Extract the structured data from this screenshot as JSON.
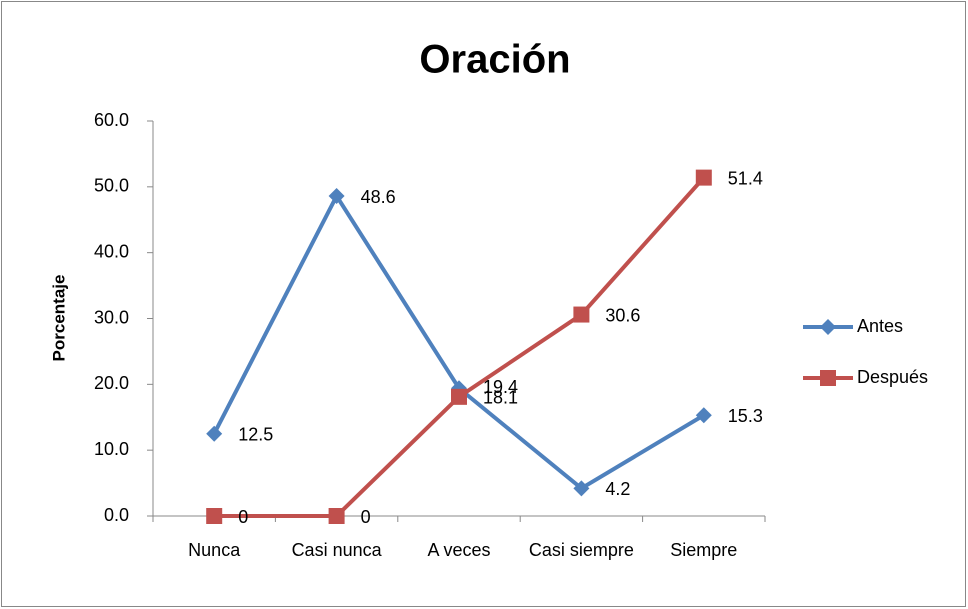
{
  "chart_data": {
    "type": "line",
    "title": "Oración",
    "y_label": "Porcentaje",
    "categories": [
      "Nunca",
      "Casi nunca",
      "A veces",
      "Casi siempre",
      "Siempre"
    ],
    "series": [
      {
        "name": "Antes",
        "color": "#4f81bd",
        "marker": "diamond",
        "values": [
          12.5,
          48.6,
          19.4,
          4.2,
          15.3
        ]
      },
      {
        "name": "Después",
        "color": "#c0504d",
        "marker": "square",
        "values": [
          0,
          0,
          18.1,
          30.6,
          51.4
        ]
      }
    ],
    "ylim": [
      0,
      60
    ],
    "yticks": [
      {
        "value": 0,
        "label": "0.0"
      },
      {
        "value": 10,
        "label": "10.0"
      },
      {
        "value": 20,
        "label": "20.0"
      },
      {
        "value": 30,
        "label": "30.0"
      },
      {
        "value": 40,
        "label": "40.0"
      },
      {
        "value": 50,
        "label": "50.0"
      },
      {
        "value": 60,
        "label": "60.0"
      }
    ],
    "grid": false,
    "legend": "right"
  }
}
